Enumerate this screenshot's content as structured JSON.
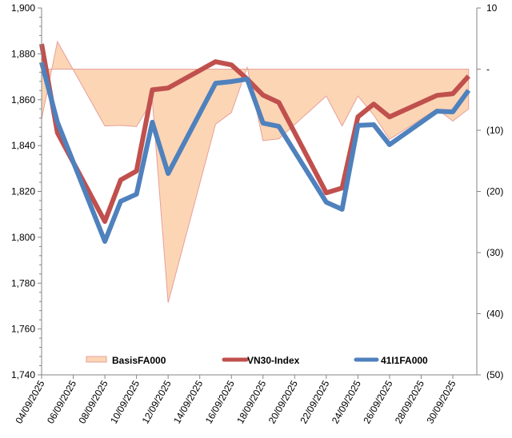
{
  "chart_data": {
    "type": "line",
    "title": "",
    "xlabel": "",
    "ylabel": "",
    "y2label": "",
    "ylim": [
      1740,
      1900
    ],
    "y2lim": [
      -50,
      10
    ],
    "yticks": [
      "1,740",
      "1,760",
      "1,780",
      "1,800",
      "1,820",
      "1,840",
      "1,860",
      "1,880",
      "1,900"
    ],
    "y2ticks": [
      "(50)",
      "(40)",
      "(30)",
      "(20)",
      "(10)",
      "-",
      "10"
    ],
    "xticks": [
      "04/09/2025",
      "06/09/2025",
      "08/09/2025",
      "10/09/2025",
      "12/09/2025",
      "14/09/2025",
      "16/09/2025",
      "18/09/2025",
      "20/09/2025",
      "22/09/2025",
      "24/09/2025",
      "26/09/2025",
      "28/09/2025",
      "30/09/2025"
    ],
    "x": [
      "04/09/2025",
      "05/09/2025",
      "08/09/2025",
      "09/09/2025",
      "10/09/2025",
      "11/09/2025",
      "12/09/2025",
      "15/09/2025",
      "16/09/2025",
      "17/09/2025",
      "18/09/2025",
      "19/09/2025",
      "22/09/2025",
      "23/09/2025",
      "24/09/2025",
      "25/09/2025",
      "26/09/2025",
      "29/09/2025",
      "30/09/2025",
      "01/10/2025"
    ],
    "series": [
      {
        "name": "BasisFA000",
        "axis": "right",
        "kind": "area",
        "color": "#FCD5B5",
        "edge": "#E6A09A",
        "values": [
          -8.2,
          4.5,
          -9.3,
          -9.2,
          -9.4,
          -5.1,
          -38.2,
          -9.0,
          -7.1,
          0.3,
          -11.7,
          -11.4,
          -4.4,
          -9.3,
          -4.4,
          -7.5,
          -11.5,
          -6.5,
          -8.5,
          -6.5
        ]
      },
      {
        "name": "VN30-Index",
        "axis": "left",
        "kind": "line",
        "color": "#C0504D",
        "values": [
          1884.3,
          1845.6,
          1806.9,
          1825.0,
          1828.9,
          1864.3,
          1865.1,
          1876.6,
          1875.2,
          1869.0,
          1862.0,
          1858.8,
          1819.4,
          1821.5,
          1852.5,
          1858.1,
          1852.5,
          1861.9,
          1862.6,
          1870.3
        ]
      },
      {
        "name": "41I1FA000",
        "axis": "left",
        "kind": "line",
        "color": "#4F81BD",
        "values": [
          1876.3,
          1850.2,
          1798.2,
          1815.7,
          1818.8,
          1850.2,
          1827.8,
          1867.2,
          1867.9,
          1869.0,
          1849.8,
          1848.4,
          1815.3,
          1812.2,
          1848.8,
          1849.1,
          1840.4,
          1855.0,
          1854.7,
          1864.1
        ]
      }
    ],
    "legend_position": "bottom-inside",
    "grid": false
  }
}
